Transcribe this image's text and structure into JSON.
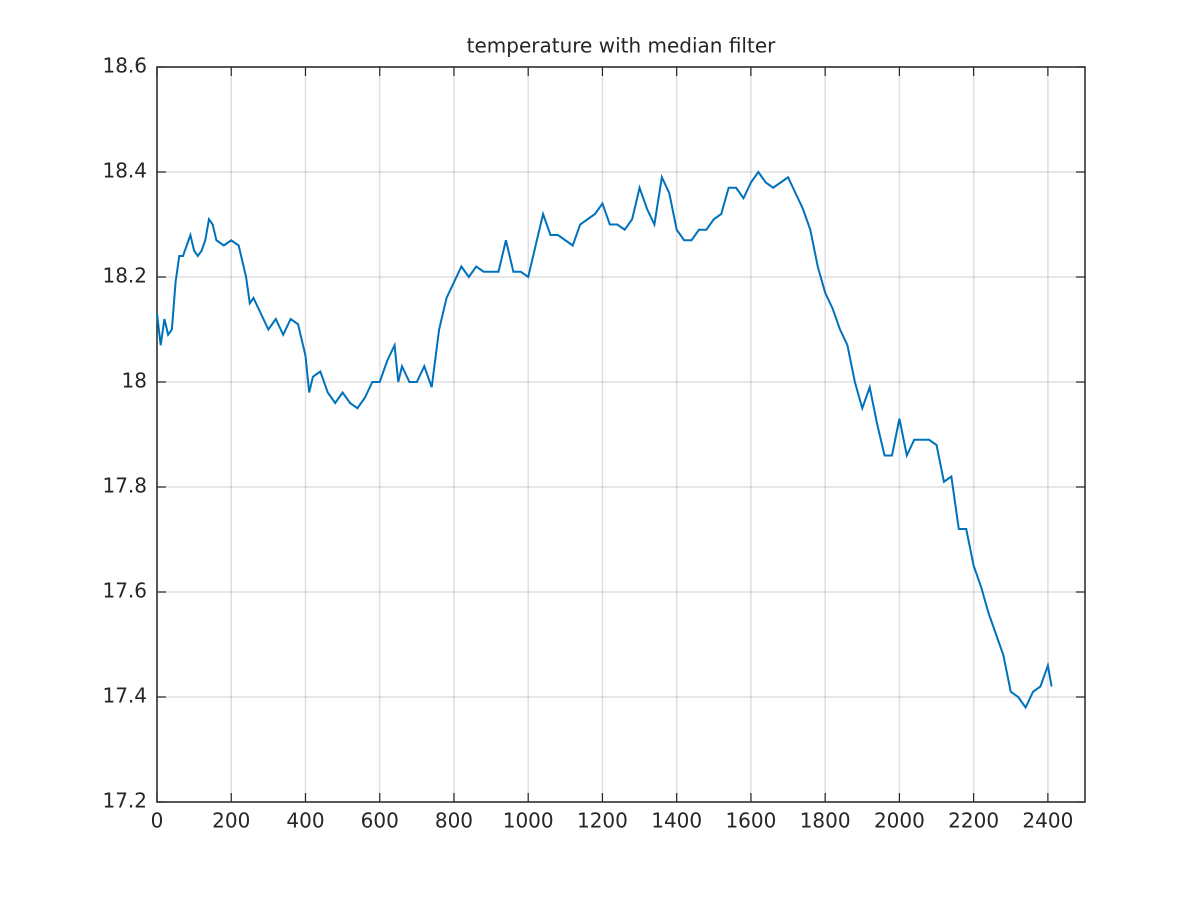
{
  "chart_data": {
    "type": "line",
    "title": "temperature with median filter",
    "x": [
      0,
      10,
      20,
      30,
      40,
      50,
      60,
      70,
      80,
      90,
      100,
      110,
      120,
      130,
      140,
      150,
      160,
      180,
      200,
      220,
      240,
      250,
      260,
      280,
      300,
      320,
      340,
      360,
      380,
      390,
      400,
      410,
      420,
      440,
      460,
      480,
      500,
      520,
      540,
      560,
      580,
      600,
      620,
      640,
      650,
      660,
      680,
      700,
      720,
      740,
      760,
      780,
      800,
      820,
      840,
      860,
      880,
      900,
      920,
      940,
      960,
      980,
      1000,
      1020,
      1040,
      1060,
      1080,
      1100,
      1120,
      1140,
      1160,
      1180,
      1200,
      1220,
      1240,
      1260,
      1280,
      1300,
      1320,
      1340,
      1360,
      1380,
      1400,
      1420,
      1440,
      1460,
      1480,
      1500,
      1520,
      1540,
      1560,
      1580,
      1600,
      1620,
      1640,
      1660,
      1680,
      1700,
      1720,
      1740,
      1760,
      1780,
      1800,
      1820,
      1840,
      1860,
      1880,
      1900,
      1920,
      1940,
      1960,
      1980,
      2000,
      2020,
      2040,
      2060,
      2080,
      2100,
      2120,
      2140,
      2160,
      2180,
      2200,
      2220,
      2240,
      2260,
      2280,
      2300,
      2320,
      2340,
      2360,
      2380,
      2400,
      2410
    ],
    "series": [
      {
        "name": "temperature",
        "color": "#0072bd",
        "values": [
          18.13,
          18.07,
          18.12,
          18.09,
          18.1,
          18.19,
          18.24,
          18.24,
          18.26,
          18.28,
          18.25,
          18.24,
          18.25,
          18.27,
          18.31,
          18.3,
          18.27,
          18.26,
          18.27,
          18.26,
          18.2,
          18.15,
          18.16,
          18.13,
          18.1,
          18.12,
          18.09,
          18.12,
          18.11,
          18.08,
          18.05,
          17.98,
          18.01,
          18.02,
          17.98,
          17.96,
          17.98,
          17.96,
          17.95,
          17.97,
          18.0,
          18.0,
          18.04,
          18.07,
          18.0,
          18.03,
          18.0,
          18.0,
          18.03,
          17.99,
          18.1,
          18.16,
          18.19,
          18.22,
          18.2,
          18.22,
          18.21,
          18.21,
          18.21,
          18.27,
          18.21,
          18.21,
          18.2,
          18.26,
          18.32,
          18.28,
          18.28,
          18.27,
          18.26,
          18.3,
          18.31,
          18.32,
          18.34,
          18.3,
          18.3,
          18.29,
          18.31,
          18.37,
          18.33,
          18.3,
          18.39,
          18.36,
          18.29,
          18.27,
          18.27,
          18.29,
          18.29,
          18.31,
          18.32,
          18.37,
          18.37,
          18.35,
          18.38,
          18.4,
          18.38,
          18.37,
          18.38,
          18.39,
          18.36,
          18.33,
          18.29,
          18.22,
          18.17,
          18.14,
          18.1,
          18.07,
          18.0,
          17.95,
          17.99,
          17.92,
          17.86,
          17.86,
          17.93,
          17.86,
          17.89,
          17.89,
          17.89,
          17.88,
          17.81,
          17.82,
          17.72,
          17.72,
          17.65,
          17.61,
          17.56,
          17.52,
          17.48,
          17.41,
          17.4,
          17.38,
          17.41,
          17.42,
          17.46,
          17.42
        ]
      }
    ],
    "xlim": [
      0,
      2500
    ],
    "xticks": [
      0,
      200,
      400,
      600,
      800,
      1000,
      1200,
      1400,
      1600,
      1800,
      2000,
      2200,
      2400
    ],
    "ylim": [
      17.2,
      18.6
    ],
    "yticks": [
      17.2,
      17.4,
      17.6,
      17.8,
      18,
      18.2,
      18.4,
      18.6
    ],
    "grid": true
  }
}
